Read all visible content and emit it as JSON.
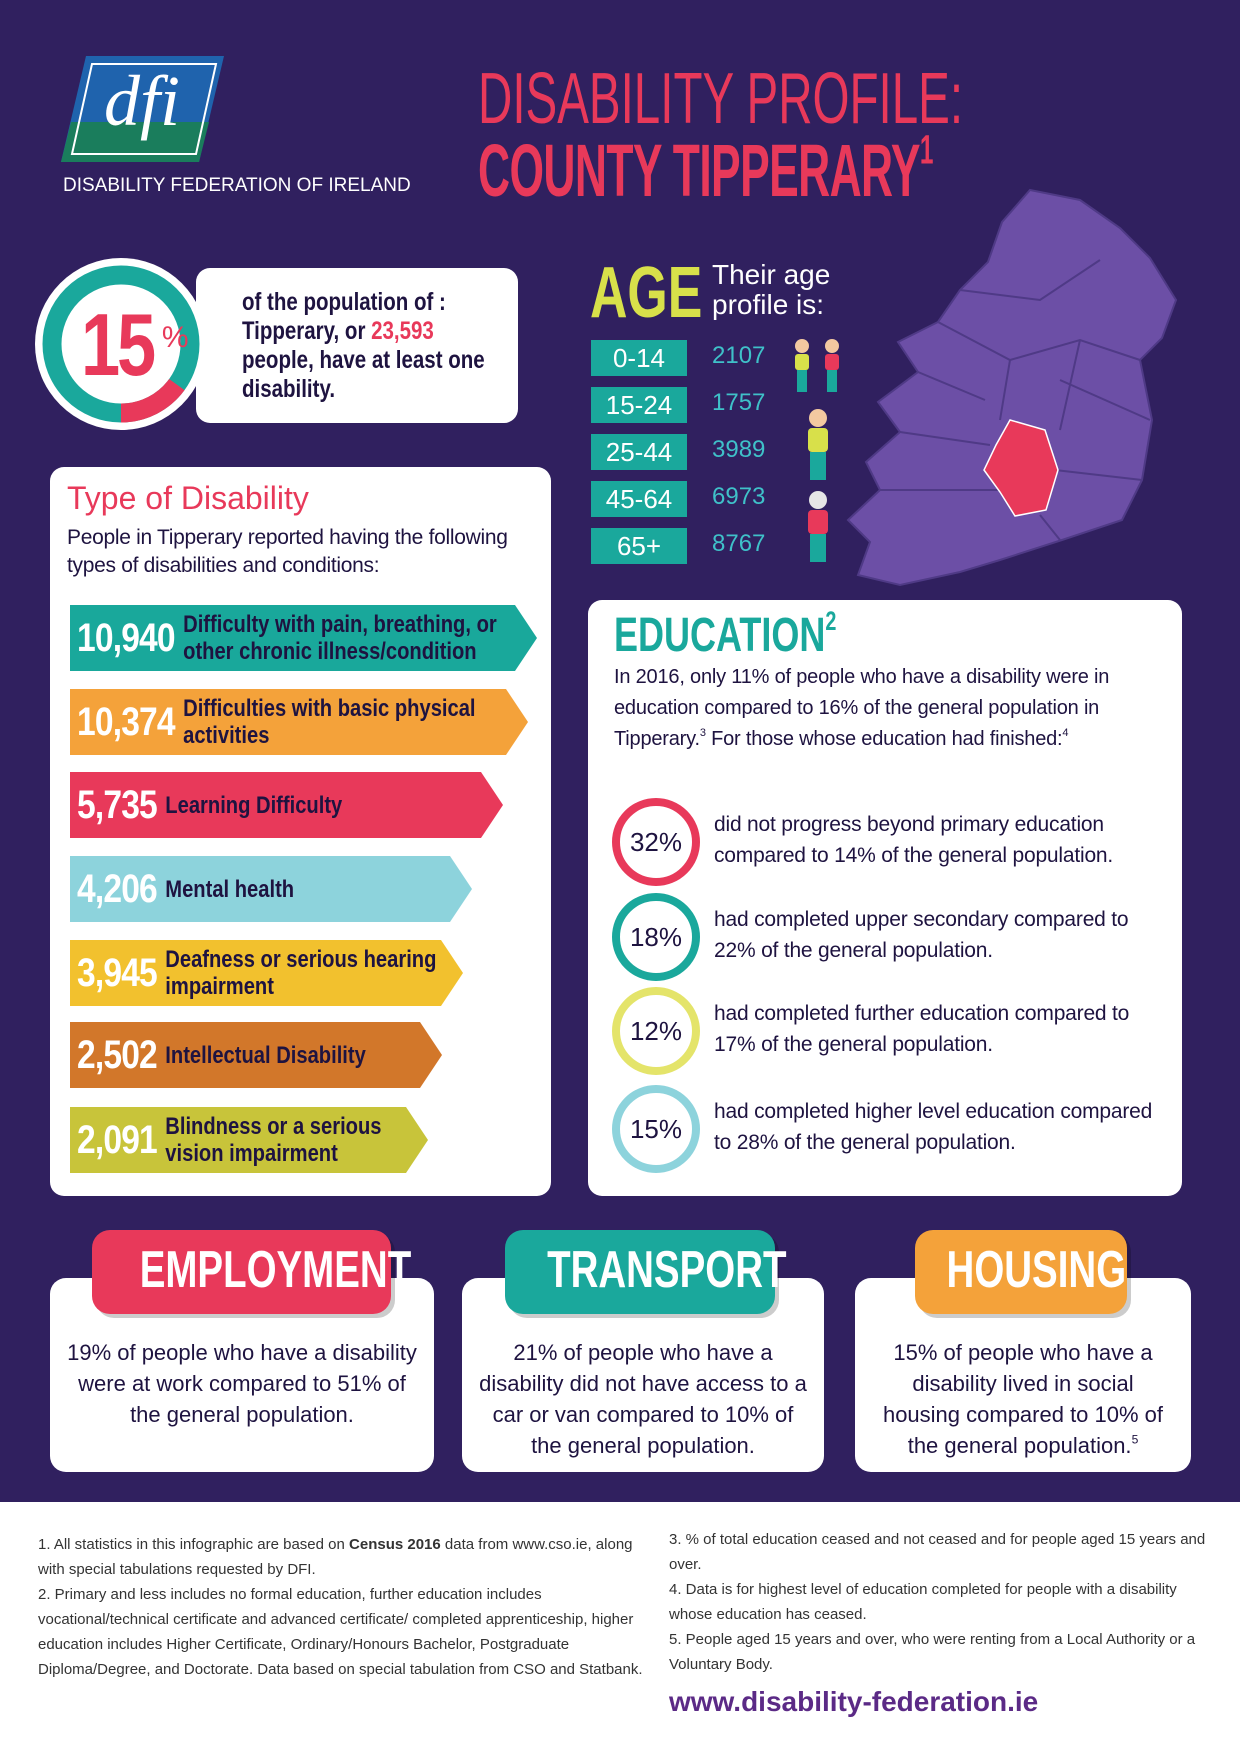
{
  "header": {
    "logo": "dfi",
    "organization": "DISABILITY FEDERATION OF IRELAND",
    "title_line1": "DISABILITY PROFILE:",
    "title_line2": "COUNTY TIPPERARY",
    "title_note": "1"
  },
  "headline": {
    "percent": 15,
    "percent_sign": "%",
    "text_before": "of the population of : Tipperary, or",
    "highlight": "23,593",
    "text_after": "people, have at least one disability."
  },
  "age": {
    "title": "AGE",
    "subtitle": "Their age profile is:",
    "groups": [
      {
        "range": "0-14",
        "count": 2107
      },
      {
        "range": "15-24",
        "count": 1757
      },
      {
        "range": "25-44",
        "count": 3989
      },
      {
        "range": "45-64",
        "count": 6973
      },
      {
        "range": "65+",
        "count": 8767
      }
    ]
  },
  "disability_types": {
    "title": "Type of Disability",
    "intro": "People in Tipperary reported having the following types of disabilities and conditions:",
    "items": [
      {
        "count": "10,940",
        "label": "Difficulty with pain, breathing, or other chronic illness/condition"
      },
      {
        "count": "10,374",
        "label": "Difficulties with basic physical activities"
      },
      {
        "count": "5,735",
        "label": "Learning Difficulty"
      },
      {
        "count": "4,206",
        "label": "Mental health"
      },
      {
        "count": "3,945",
        "label": "Deafness or serious hearing impairment"
      },
      {
        "count": "2,502",
        "label": "Intellectual Disability"
      },
      {
        "count": "2,091",
        "label": "Blindness or a serious vision impairment"
      }
    ]
  },
  "education": {
    "title": "EDUCATION",
    "title_note": "2",
    "intro": {
      "text1": "In 2016, only 11% of people who have a disability were in education compared to 16% of the general population in Tipperary.",
      "note1": "3",
      "text2": "For those whose education had finished:",
      "note2": "4"
    },
    "items": [
      {
        "percent": "32%",
        "text": "did not progress beyond primary education compared to 14% of the general population."
      },
      {
        "percent": "18%",
        "text": "had completed upper secondary compared to 22% of the general population."
      },
      {
        "percent": "12%",
        "text": "had completed further education compared to 17% of the general population."
      },
      {
        "percent": "15%",
        "text": "had completed higher level education compared to 28% of the general population."
      }
    ]
  },
  "sections": [
    {
      "title": "EMPLOYMENT",
      "text": "19% of people who have a disability were at work compared to 51% of the general population."
    },
    {
      "title": "TRANSPORT",
      "text": "21% of people who have a disability did not have access to a car or van compared to 10% of the general population."
    },
    {
      "title": "HOUSING",
      "text": "15% of people who have a disability lived in social housing compared to 10% of the general population.",
      "note": "5"
    }
  ],
  "footnotes": {
    "note1": {
      "text1": "1. All statistics in this infographic are based on",
      "bold": "Census 2016",
      "text2": "data from www.cso.ie, along with special tabulations requested by DFI."
    },
    "note2": "2. Primary and less includes no formal education, further education includes vocational/technical certificate and advanced certificate/ completed apprenticeship, higher education includes Higher Certificate, Ordinary/Honours Bachelor, Postgraduate Diploma/Degree, and Doctorate. Data based on special tabulation from CSO and Statbank.",
    "note3": "3. % of total education ceased and not ceased and for people aged 15 years and over.",
    "note4": "4. Data is for highest level of education completed for people with a disability whose education has ceased.",
    "note5": "5. People aged 15 years and over, who were renting from a Local Authority or a Voluntary Body.",
    "url": "www.disability-federation.ie"
  }
}
